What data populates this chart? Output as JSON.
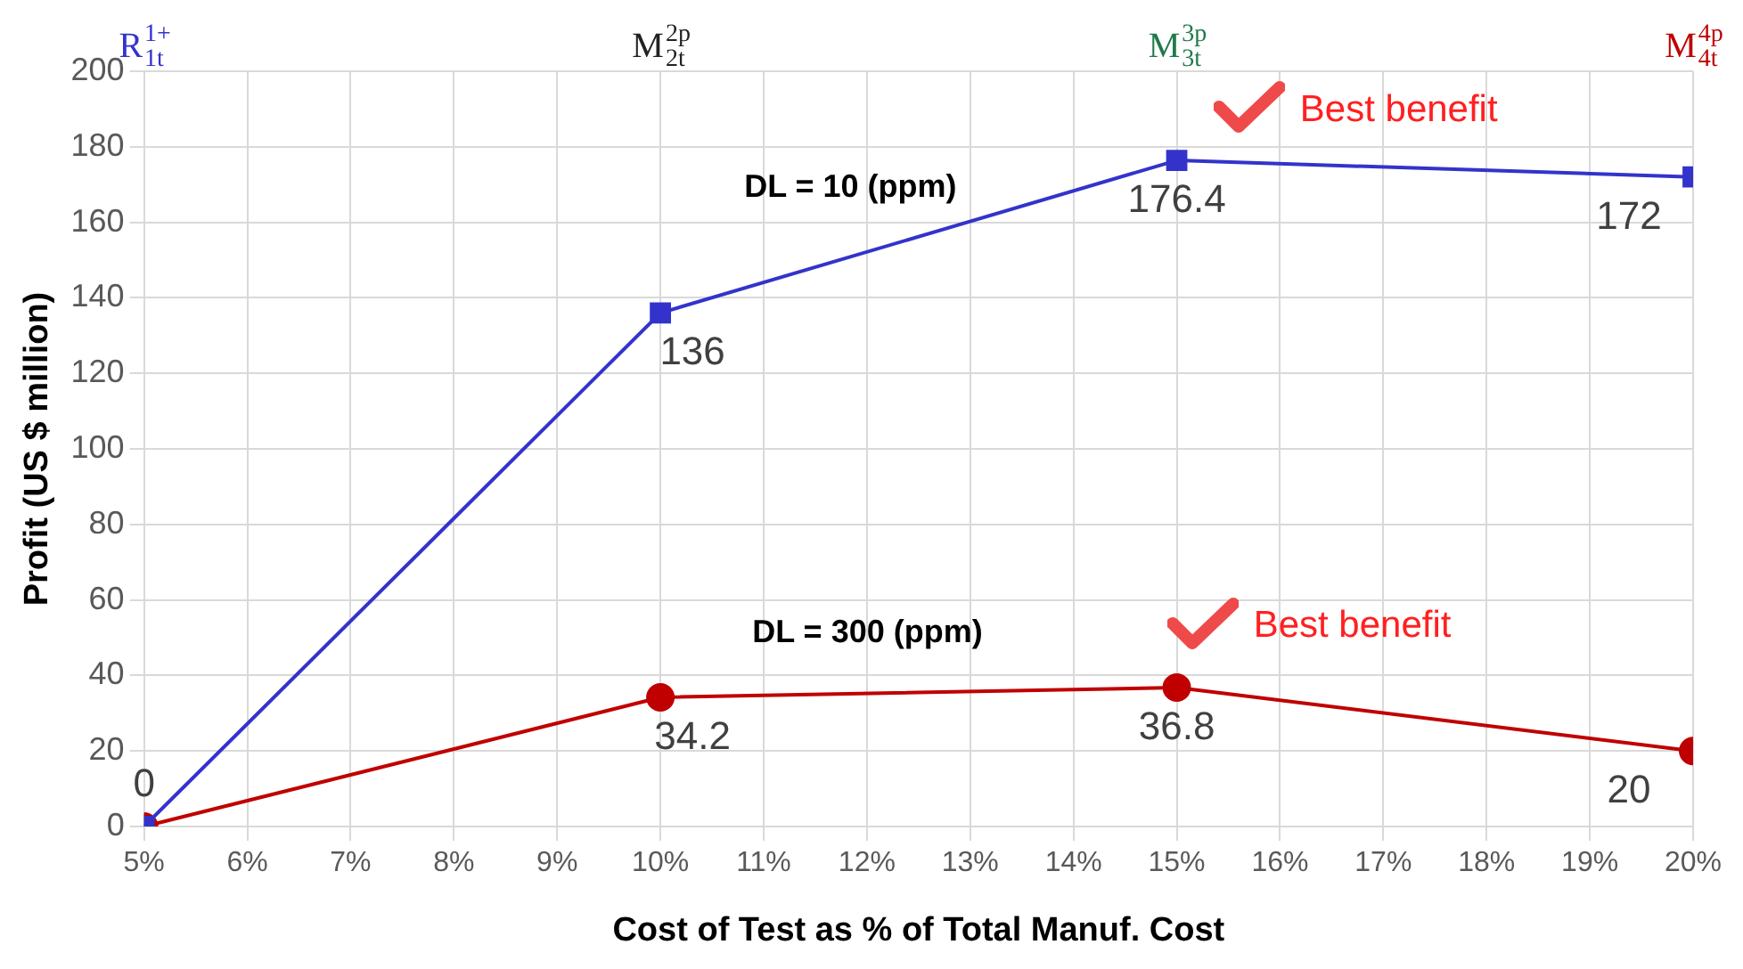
{
  "chart_data": {
    "type": "line",
    "xlabel": "Cost of Test as % of Total Manuf. Cost",
    "ylabel": "Profit (US $ million)",
    "x": [
      5,
      10,
      15,
      20
    ],
    "series": [
      {
        "color": "#3333cc",
        "marker": "square",
        "values": [
          0,
          136,
          176.4,
          172
        ],
        "value_labels": [
          "0",
          "136",
          "176.4",
          "172"
        ]
      },
      {
        "color": "#c00000",
        "marker": "circle",
        "values": [
          0,
          34.2,
          36.8,
          20
        ],
        "value_labels": [
          null,
          "34.2",
          "36.8",
          "20"
        ]
      }
    ],
    "xlim": [
      5,
      20
    ],
    "xticks": [
      {
        "value": 5,
        "label": "5%"
      },
      {
        "value": 6,
        "label": "6%"
      },
      {
        "value": 7,
        "label": "7%"
      },
      {
        "value": 8,
        "label": "8%"
      },
      {
        "value": 9,
        "label": "9%"
      },
      {
        "value": 10,
        "label": "10%"
      },
      {
        "value": 11,
        "label": "11%"
      },
      {
        "value": 12,
        "label": "12%"
      },
      {
        "value": 13,
        "label": "13%"
      },
      {
        "value": 14,
        "label": "14%"
      },
      {
        "value": 15,
        "label": "15%"
      },
      {
        "value": 16,
        "label": "16%"
      },
      {
        "value": 17,
        "label": "17%"
      },
      {
        "value": 18,
        "label": "18%"
      },
      {
        "value": 19,
        "label": "19%"
      },
      {
        "value": 20,
        "label": "20%"
      }
    ],
    "ylim": [
      0,
      200
    ],
    "yticks": [
      0,
      20,
      40,
      60,
      80,
      100,
      120,
      140,
      160,
      180,
      200
    ],
    "grid": true,
    "legend": false,
    "line_style": "solid",
    "annotations": [
      "R$^{1+}$$_{1t}$",
      "M$^{2p}$$_{2t}$",
      "M$^{3p}$$_{3t}$",
      "M$^{4p}$$_{4t}$",
      "DL = 10 (ppm)",
      "DL = 300 (ppm)",
      "Best benefit",
      "Best benefit"
    ]
  }
}
